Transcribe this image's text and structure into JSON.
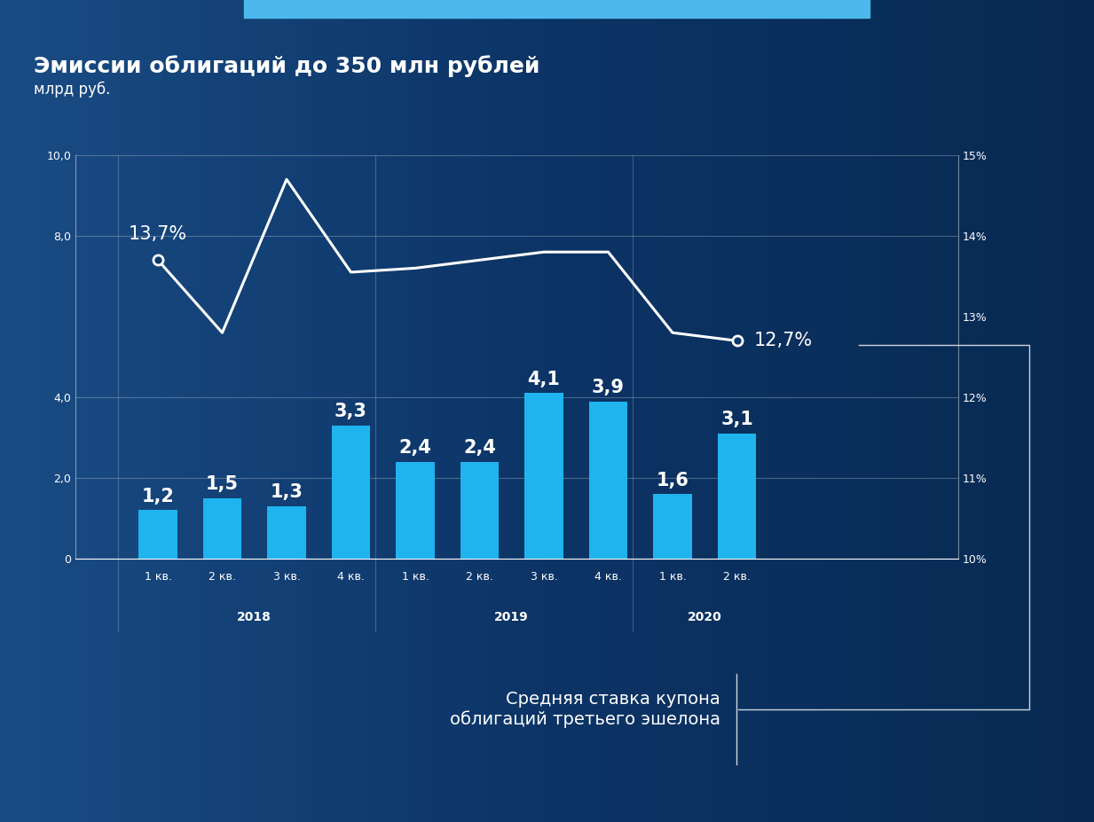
{
  "chart_data": {
    "type": "bar",
    "title": "Эмиссии облигаций до 350 млн рублей",
    "subtitle": "млрд руб.",
    "categories": [
      "1 кв.",
      "2 кв.",
      "3 кв.",
      "4 кв.",
      "1 кв.",
      "2 кв.",
      "3 кв.",
      "4 кв.",
      "1 кв.",
      "2 кв."
    ],
    "groups": [
      {
        "name": "2018",
        "size": 4
      },
      {
        "name": "2019",
        "size": 4
      },
      {
        "name": "2020",
        "size": 2
      }
    ],
    "values": [
      1.2,
      1.5,
      1.3,
      3.3,
      2.4,
      2.4,
      4.1,
      3.9,
      1.6,
      3.1
    ],
    "value_labels": [
      "1,2",
      "1,5",
      "1,3",
      "3,3",
      "2,4",
      "2,4",
      "4,1",
      "3,9",
      "1,6",
      "3,1"
    ],
    "color": "#1fb4ee",
    "data_labels": true,
    "grid": true,
    "ylim": [
      0,
      10
    ],
    "yticks": [
      0,
      {
        "value": 2,
        "label": "2,0"
      },
      {
        "value": 4,
        "label": "4,0"
      },
      {
        "value": 8,
        "label": "8,0"
      },
      {
        "value": 10,
        "label": "10,0"
      }
    ],
    "y2lim": [
      10,
      15
    ],
    "y2ticks": [
      {
        "value": 10,
        "label": "10%"
      },
      {
        "value": 11,
        "label": "11%"
      },
      {
        "value": 12,
        "label": "12%"
      },
      {
        "value": 13,
        "label": "13%"
      },
      {
        "value": 14,
        "label": "14%"
      },
      {
        "value": 15,
        "label": "15%"
      }
    ],
    "series": [
      {
        "name": "Средняя ставка купона\nоблигаций третьего эшелона",
        "type": "line",
        "axis": "y2",
        "color": "#ffffff",
        "marker": "circle",
        "values": [
          13.7,
          12.8,
          14.7,
          13.55,
          13.6,
          13.7,
          13.8,
          13.8,
          12.8,
          12.7
        ],
        "value_labels": [
          "13,7%",
          null,
          null,
          null,
          null,
          null,
          null,
          null,
          null,
          "12,7%"
        ]
      }
    ]
  }
}
